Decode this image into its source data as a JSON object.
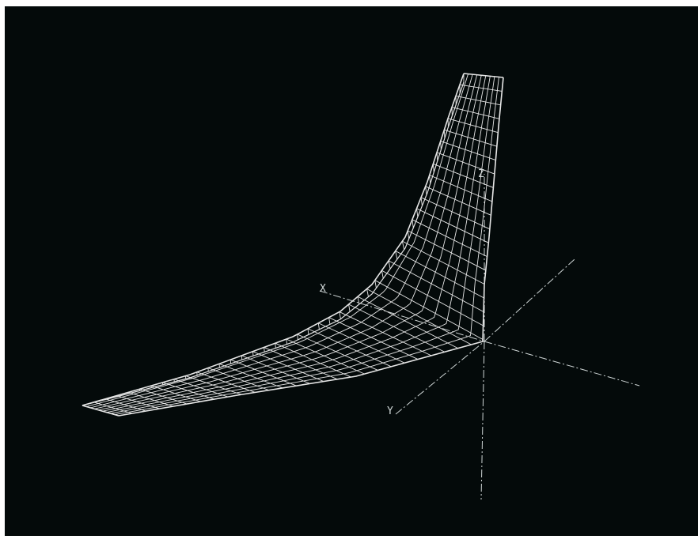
{
  "viewport": {
    "background": "#040a0a",
    "mesh_color": "#e6e6e6",
    "axis_color": "#cfd6d6"
  },
  "axes": {
    "x_label": "X",
    "y_label": "Y",
    "z_label": "Z"
  }
}
